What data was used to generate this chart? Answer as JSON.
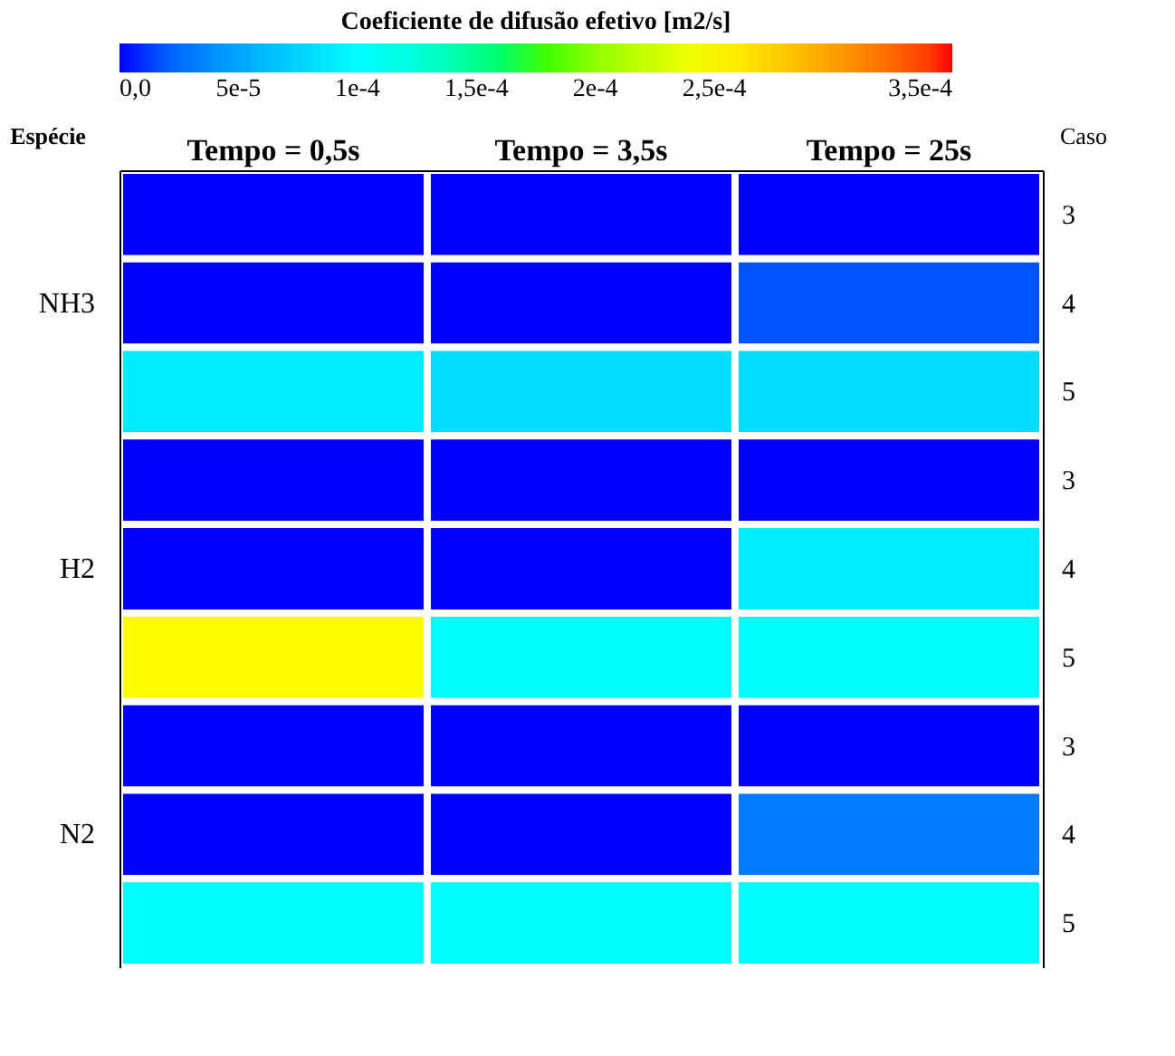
{
  "chart_data": {
    "type": "heatmap",
    "clabel": "Coeficiente de difusão efetivo [m2/s]",
    "ylabel": "Espécie",
    "y2label": "Caso",
    "categories": [
      "Tempo = 0,5s",
      "Tempo = 3,5s",
      "Tempo = 25s"
    ],
    "y_categories": [
      null,
      "NH3",
      null,
      null,
      "H2",
      null,
      null,
      "N2",
      null
    ],
    "y2_categories": [
      "3",
      "4",
      "5",
      "3",
      "4",
      "5",
      "3",
      "4",
      "5"
    ],
    "cells": [
      [
        0,
        0,
        0
      ],
      [
        0,
        0,
        1.5e-05
      ],
      [
        9e-05,
        8e-05,
        8e-05
      ],
      [
        0,
        0,
        0
      ],
      [
        0,
        0,
        9e-05
      ],
      [
        0.00025,
        0.0001,
        0.0001
      ],
      [
        0,
        0,
        0
      ],
      [
        0,
        0,
        3e-05
      ],
      [
        0.0001,
        0.0001,
        0.0001
      ]
    ],
    "clim": [
      0,
      0.00035
    ],
    "cticks": [
      {
        "value": 0,
        "label": "0,0"
      },
      {
        "value": 5e-05,
        "label": "5e-5"
      },
      {
        "value": 0.0001,
        "label": "1e-4"
      },
      {
        "value": 0.00015,
        "label": "1,5e-4"
      },
      {
        "value": 0.0002,
        "label": "2e-4"
      },
      {
        "value": 0.00025,
        "label": "2,5e-4"
      },
      {
        "value": 0.00035,
        "label": "3,5e-4"
      }
    ]
  }
}
